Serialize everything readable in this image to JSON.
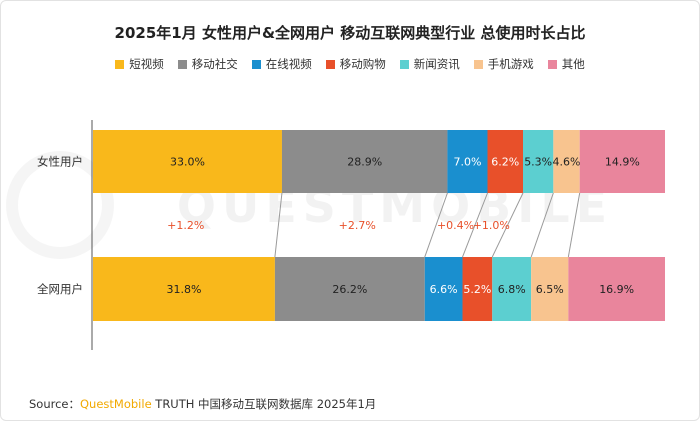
{
  "title": "2025年1月 女性用户&全网用户 移动互联网典型行业 总使用时长占比",
  "source": {
    "prefix": "Source：",
    "brand": "QuestMobile",
    "rest": " TRUTH 中国移动互联网数据库 2025年1月"
  },
  "watermark": "QUESTMOBILE",
  "chart_data": {
    "type": "bar",
    "orientation": "horizontal",
    "stacked": "percent",
    "categories": [
      "女性用户",
      "全网用户"
    ],
    "series": [
      {
        "name": "短视频",
        "color": "#f9b81b",
        "values": [
          33.0,
          31.8
        ],
        "labels": [
          "33.0%",
          "31.8%"
        ]
      },
      {
        "name": "移动社交",
        "color": "#8c8c8c",
        "values": [
          28.9,
          26.2
        ],
        "labels": [
          "28.9%",
          "26.2%"
        ]
      },
      {
        "name": "在线视频",
        "color": "#1a8fcf",
        "values": [
          7.0,
          6.6
        ],
        "labels": [
          "7.0%",
          "6.6%"
        ]
      },
      {
        "name": "移动购物",
        "color": "#e8502a",
        "values": [
          6.2,
          5.2
        ],
        "labels": [
          "6.2%",
          "5.2%"
        ]
      },
      {
        "name": "新闻资讯",
        "color": "#5ccfd0",
        "values": [
          5.3,
          6.8
        ],
        "labels": [
          "5.3%",
          "6.8%"
        ]
      },
      {
        "name": "手机游戏",
        "color": "#f8c48f",
        "values": [
          4.6,
          6.5
        ],
        "labels": [
          "4.6%",
          "6.5%"
        ]
      },
      {
        "name": "其他",
        "color": "#e9859c",
        "values": [
          14.9,
          16.9
        ],
        "labels": [
          "14.9%",
          "16.9%"
        ]
      }
    ],
    "differences": [
      {
        "series": "短视频",
        "label": "+1.2%"
      },
      {
        "series": "移动社交",
        "label": "+2.7%"
      },
      {
        "series": "在线视频",
        "label": "+0.4%"
      },
      {
        "series": "移动购物",
        "label": "+1.0%"
      }
    ],
    "difference_color": "#e8502a",
    "legend_position": "top"
  }
}
